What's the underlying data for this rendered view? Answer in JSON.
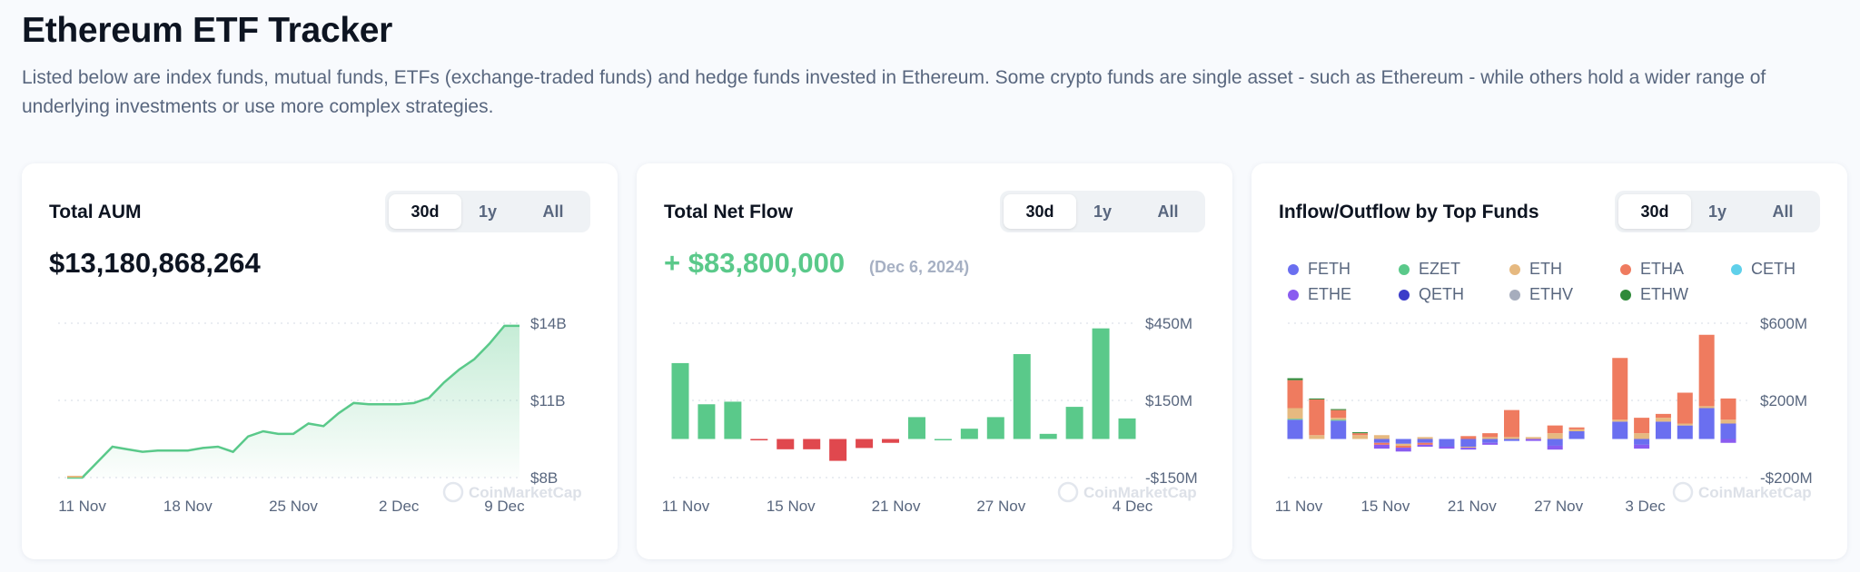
{
  "header": {
    "title": "Ethereum ETF Tracker",
    "description": "Listed below are index funds, mutual funds, ETFs (exchange-traded funds) and hedge funds invested in Ethereum. Some crypto funds are single asset - such as Ethereum - while others hold a wider range of underlying investments or use more complex strategies."
  },
  "watermark": "CoinMarketCap",
  "range_options": [
    "30d",
    "1y",
    "All"
  ],
  "selected_range": "30d",
  "colors": {
    "green": "#5ac98a",
    "red": "#e0484e",
    "grid": "#e3e7ee"
  },
  "aum": {
    "title": "Total AUM",
    "value": "$13,180,868,264",
    "chart_data": {
      "type": "area",
      "y_ticks": [
        "$14B",
        "$11B",
        "$8B"
      ],
      "ylim": [
        8,
        14
      ],
      "x_tick_labels": [
        "11 Nov",
        "18 Nov",
        "25 Nov",
        "2 Dec",
        "9 Dec"
      ],
      "x_tick_index": [
        1,
        8,
        15,
        22,
        29
      ],
      "values": [
        8.0,
        8.0,
        8.6,
        9.2,
        9.1,
        9.0,
        9.05,
        9.05,
        9.05,
        9.15,
        9.2,
        9.0,
        9.6,
        9.8,
        9.7,
        9.7,
        10.1,
        10.0,
        10.5,
        10.9,
        10.85,
        10.85,
        10.85,
        10.9,
        11.1,
        11.7,
        12.2,
        12.6,
        13.2,
        13.9,
        13.9
      ],
      "unit": "billion USD"
    }
  },
  "netflow": {
    "title": "Total Net Flow",
    "value": "+ $83,800,000",
    "date": "(Dec 6, 2024)",
    "chart_data": {
      "type": "bar",
      "y_ticks": [
        "$450M",
        "$150M",
        "-$150M"
      ],
      "ylim": [
        -150,
        450
      ],
      "x_tick_labels": [
        "11 Nov",
        "15 Nov",
        "21 Nov",
        "27 Nov",
        "4 Dec"
      ],
      "x_tick_index": [
        0,
        4,
        8,
        12,
        17
      ],
      "values": [
        295,
        135,
        145,
        -5,
        -40,
        -40,
        -85,
        -35,
        -15,
        85,
        0,
        40,
        85,
        330,
        20,
        125,
        430,
        80
      ],
      "unit": "million USD"
    }
  },
  "funds": {
    "title": "Inflow/Outflow by Top Funds",
    "legend": [
      {
        "name": "FETH",
        "color": "#6a6ff0"
      },
      {
        "name": "EZET",
        "color": "#5ac98a"
      },
      {
        "name": "ETH",
        "color": "#e6b980"
      },
      {
        "name": "ETHA",
        "color": "#ef7b5f"
      },
      {
        "name": "CETH",
        "color": "#5fd0ea"
      },
      {
        "name": "ETHE",
        "color": "#8a5cf0"
      },
      {
        "name": "QETH",
        "color": "#3b3cc9"
      },
      {
        "name": "ETHV",
        "color": "#a6adbd"
      },
      {
        "name": "ETHW",
        "color": "#2f8a3a"
      }
    ],
    "chart_data": {
      "type": "bar",
      "stacked": true,
      "y_ticks": [
        "$600M",
        "$200M",
        "-$200M"
      ],
      "ylim": [
        -200,
        600
      ],
      "x_tick_labels": [
        "11 Nov",
        "15 Nov",
        "21 Nov",
        "27 Nov",
        "3 Dec"
      ],
      "x_tick_index": [
        0,
        4,
        8,
        12,
        16
      ],
      "series": [
        {
          "name": "FETH",
          "values": [
            100,
            0,
            95,
            0,
            -20,
            -25,
            -20,
            -40,
            -40,
            -20,
            -10,
            0,
            -35,
            40,
            0,
            90,
            -30,
            90,
            70,
            160,
            80
          ]
        },
        {
          "name": "EZET",
          "values": [
            5,
            0,
            5,
            0,
            0,
            0,
            0,
            0,
            0,
            0,
            0,
            0,
            0,
            0,
            0,
            0,
            0,
            0,
            0,
            0,
            0
          ]
        },
        {
          "name": "ETH",
          "values": [
            55,
            20,
            10,
            20,
            20,
            -10,
            10,
            0,
            -5,
            10,
            10,
            10,
            30,
            10,
            0,
            10,
            30,
            20,
            10,
            10,
            20
          ]
        },
        {
          "name": "ETHA",
          "values": [
            145,
            185,
            40,
            10,
            -10,
            -10,
            -10,
            0,
            15,
            20,
            140,
            0,
            40,
            10,
            0,
            320,
            80,
            20,
            160,
            370,
            110
          ]
        },
        {
          "name": "CETH",
          "values": [
            0,
            0,
            0,
            0,
            0,
            0,
            0,
            0,
            0,
            0,
            0,
            0,
            0,
            0,
            0,
            0,
            0,
            0,
            0,
            0,
            0
          ]
        },
        {
          "name": "ETHE",
          "values": [
            0,
            0,
            0,
            0,
            -20,
            -20,
            -10,
            -10,
            -10,
            -10,
            0,
            -10,
            -20,
            0,
            0,
            0,
            -20,
            0,
            0,
            0,
            -20
          ]
        },
        {
          "name": "QETH",
          "values": [
            0,
            0,
            0,
            0,
            0,
            0,
            0,
            0,
            0,
            0,
            0,
            0,
            0,
            0,
            0,
            0,
            0,
            0,
            0,
            0,
            0
          ]
        },
        {
          "name": "ETHV",
          "values": [
            0,
            0,
            0,
            0,
            0,
            0,
            0,
            0,
            0,
            0,
            0,
            0,
            0,
            0,
            0,
            0,
            0,
            0,
            0,
            0,
            0
          ]
        },
        {
          "name": "ETHW",
          "values": [
            10,
            5,
            5,
            5,
            0,
            0,
            0,
            0,
            0,
            0,
            0,
            0,
            0,
            0,
            0,
            0,
            0,
            0,
            0,
            0,
            0
          ]
        }
      ],
      "unit": "million USD"
    }
  }
}
